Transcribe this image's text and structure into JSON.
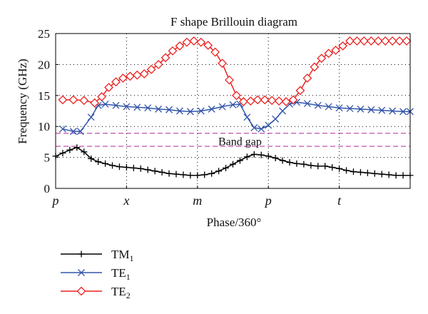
{
  "chart_data": {
    "type": "line",
    "title": "F shape Brillouin diagram",
    "xlabel": "Phase/360°",
    "ylabel": "Frequency (GHz)",
    "ylim": [
      0,
      25
    ],
    "xlim": [
      0,
      5
    ],
    "x_ticks": [
      {
        "x": 0,
        "label": "p"
      },
      {
        "x": 1,
        "label": "x"
      },
      {
        "x": 2,
        "label": "m"
      },
      {
        "x": 3,
        "label": "p"
      },
      {
        "x": 4,
        "label": "t"
      }
    ],
    "y_ticks": [
      {
        "y": 0,
        "label": "0"
      },
      {
        "y": 5,
        "label": "5"
      },
      {
        "y": 10,
        "label": "10"
      },
      {
        "y": 15,
        "label": "15"
      },
      {
        "y": 20,
        "label": "20"
      },
      {
        "y": 25,
        "label": "25"
      }
    ],
    "grid": "dotted",
    "band_gap": {
      "lower": 6.8,
      "upper": 8.9,
      "label": "Band gap",
      "color": "#c050b0"
    },
    "series": [
      {
        "name": "TM",
        "subscript": "1",
        "color": "#000000",
        "marker": "plus",
        "points": [
          [
            0.0,
            5.2
          ],
          [
            0.1,
            5.7
          ],
          [
            0.2,
            6.2
          ],
          [
            0.3,
            6.6
          ],
          [
            0.4,
            5.9
          ],
          [
            0.5,
            4.8
          ],
          [
            0.6,
            4.3
          ],
          [
            0.7,
            4.0
          ],
          [
            0.8,
            3.7
          ],
          [
            0.9,
            3.5
          ],
          [
            1.0,
            3.4
          ],
          [
            1.1,
            3.3
          ],
          [
            1.2,
            3.2
          ],
          [
            1.3,
            3.0
          ],
          [
            1.4,
            2.8
          ],
          [
            1.5,
            2.6
          ],
          [
            1.6,
            2.4
          ],
          [
            1.7,
            2.3
          ],
          [
            1.8,
            2.2
          ],
          [
            1.9,
            2.1
          ],
          [
            2.0,
            2.1
          ],
          [
            2.1,
            2.2
          ],
          [
            2.2,
            2.4
          ],
          [
            2.3,
            2.8
          ],
          [
            2.4,
            3.3
          ],
          [
            2.5,
            3.9
          ],
          [
            2.6,
            4.5
          ],
          [
            2.7,
            5.1
          ],
          [
            2.8,
            5.5
          ],
          [
            2.9,
            5.4
          ],
          [
            3.0,
            5.2
          ],
          [
            3.1,
            4.9
          ],
          [
            3.2,
            4.5
          ],
          [
            3.3,
            4.2
          ],
          [
            3.4,
            4.0
          ],
          [
            3.5,
            3.9
          ],
          [
            3.6,
            3.7
          ],
          [
            3.7,
            3.6
          ],
          [
            3.8,
            3.6
          ],
          [
            3.9,
            3.4
          ],
          [
            4.0,
            3.2
          ],
          [
            4.1,
            2.9
          ],
          [
            4.2,
            2.7
          ],
          [
            4.3,
            2.6
          ],
          [
            4.4,
            2.5
          ],
          [
            4.5,
            2.4
          ],
          [
            4.6,
            2.3
          ],
          [
            4.7,
            2.2
          ],
          [
            4.8,
            2.1
          ],
          [
            4.9,
            2.1
          ],
          [
            5.0,
            2.1
          ]
        ]
      },
      {
        "name": "TE",
        "subscript": "1",
        "color": "#3355aa",
        "marker": "x",
        "points": [
          [
            0.1,
            9.6
          ],
          [
            0.25,
            9.2
          ],
          [
            0.35,
            9.2
          ],
          [
            0.5,
            11.5
          ],
          [
            0.6,
            13.4
          ],
          [
            0.7,
            13.6
          ],
          [
            0.85,
            13.4
          ],
          [
            1.0,
            13.2
          ],
          [
            1.15,
            13.1
          ],
          [
            1.3,
            13.0
          ],
          [
            1.45,
            12.8
          ],
          [
            1.6,
            12.7
          ],
          [
            1.75,
            12.5
          ],
          [
            1.9,
            12.4
          ],
          [
            2.05,
            12.5
          ],
          [
            2.2,
            12.8
          ],
          [
            2.35,
            13.2
          ],
          [
            2.5,
            13.5
          ],
          [
            2.6,
            13.6
          ],
          [
            2.7,
            11.5
          ],
          [
            2.8,
            9.8
          ],
          [
            2.9,
            9.6
          ],
          [
            3.0,
            10.2
          ],
          [
            3.1,
            11.2
          ],
          [
            3.2,
            12.5
          ],
          [
            3.3,
            13.6
          ],
          [
            3.4,
            13.9
          ],
          [
            3.55,
            13.7
          ],
          [
            3.7,
            13.4
          ],
          [
            3.85,
            13.2
          ],
          [
            4.0,
            13.0
          ],
          [
            4.15,
            12.9
          ],
          [
            4.3,
            12.8
          ],
          [
            4.45,
            12.7
          ],
          [
            4.6,
            12.6
          ],
          [
            4.75,
            12.5
          ],
          [
            4.9,
            12.4
          ],
          [
            5.0,
            12.4
          ]
        ]
      },
      {
        "name": "TE",
        "subscript": "2",
        "color": "#ee2222",
        "marker": "diamond",
        "points": [
          [
            0.1,
            14.3
          ],
          [
            0.25,
            14.3
          ],
          [
            0.4,
            14.2
          ],
          [
            0.55,
            13.8
          ],
          [
            0.65,
            14.8
          ],
          [
            0.75,
            16.3
          ],
          [
            0.85,
            17.2
          ],
          [
            0.95,
            17.8
          ],
          [
            1.05,
            18.1
          ],
          [
            1.15,
            18.3
          ],
          [
            1.25,
            18.5
          ],
          [
            1.35,
            19.2
          ],
          [
            1.45,
            20.0
          ],
          [
            1.55,
            21.1
          ],
          [
            1.65,
            22.2
          ],
          [
            1.75,
            23.0
          ],
          [
            1.85,
            23.6
          ],
          [
            1.95,
            23.8
          ],
          [
            2.05,
            23.6
          ],
          [
            2.15,
            23.1
          ],
          [
            2.25,
            22.0
          ],
          [
            2.35,
            20.2
          ],
          [
            2.45,
            17.5
          ],
          [
            2.55,
            15.0
          ],
          [
            2.65,
            14.0
          ],
          [
            2.75,
            14.1
          ],
          [
            2.85,
            14.3
          ],
          [
            2.95,
            14.3
          ],
          [
            3.05,
            14.2
          ],
          [
            3.15,
            14.1
          ],
          [
            3.25,
            14.0
          ],
          [
            3.35,
            14.3
          ],
          [
            3.45,
            15.8
          ],
          [
            3.55,
            17.8
          ],
          [
            3.65,
            19.6
          ],
          [
            3.75,
            21.0
          ],
          [
            3.85,
            21.8
          ],
          [
            3.95,
            22.3
          ],
          [
            4.05,
            23.0
          ],
          [
            4.15,
            23.8
          ],
          [
            4.25,
            23.8
          ],
          [
            4.35,
            23.8
          ],
          [
            4.45,
            23.8
          ],
          [
            4.55,
            23.8
          ],
          [
            4.65,
            23.8
          ],
          [
            4.75,
            23.8
          ],
          [
            4.85,
            23.8
          ],
          [
            4.95,
            23.8
          ]
        ]
      }
    ]
  }
}
